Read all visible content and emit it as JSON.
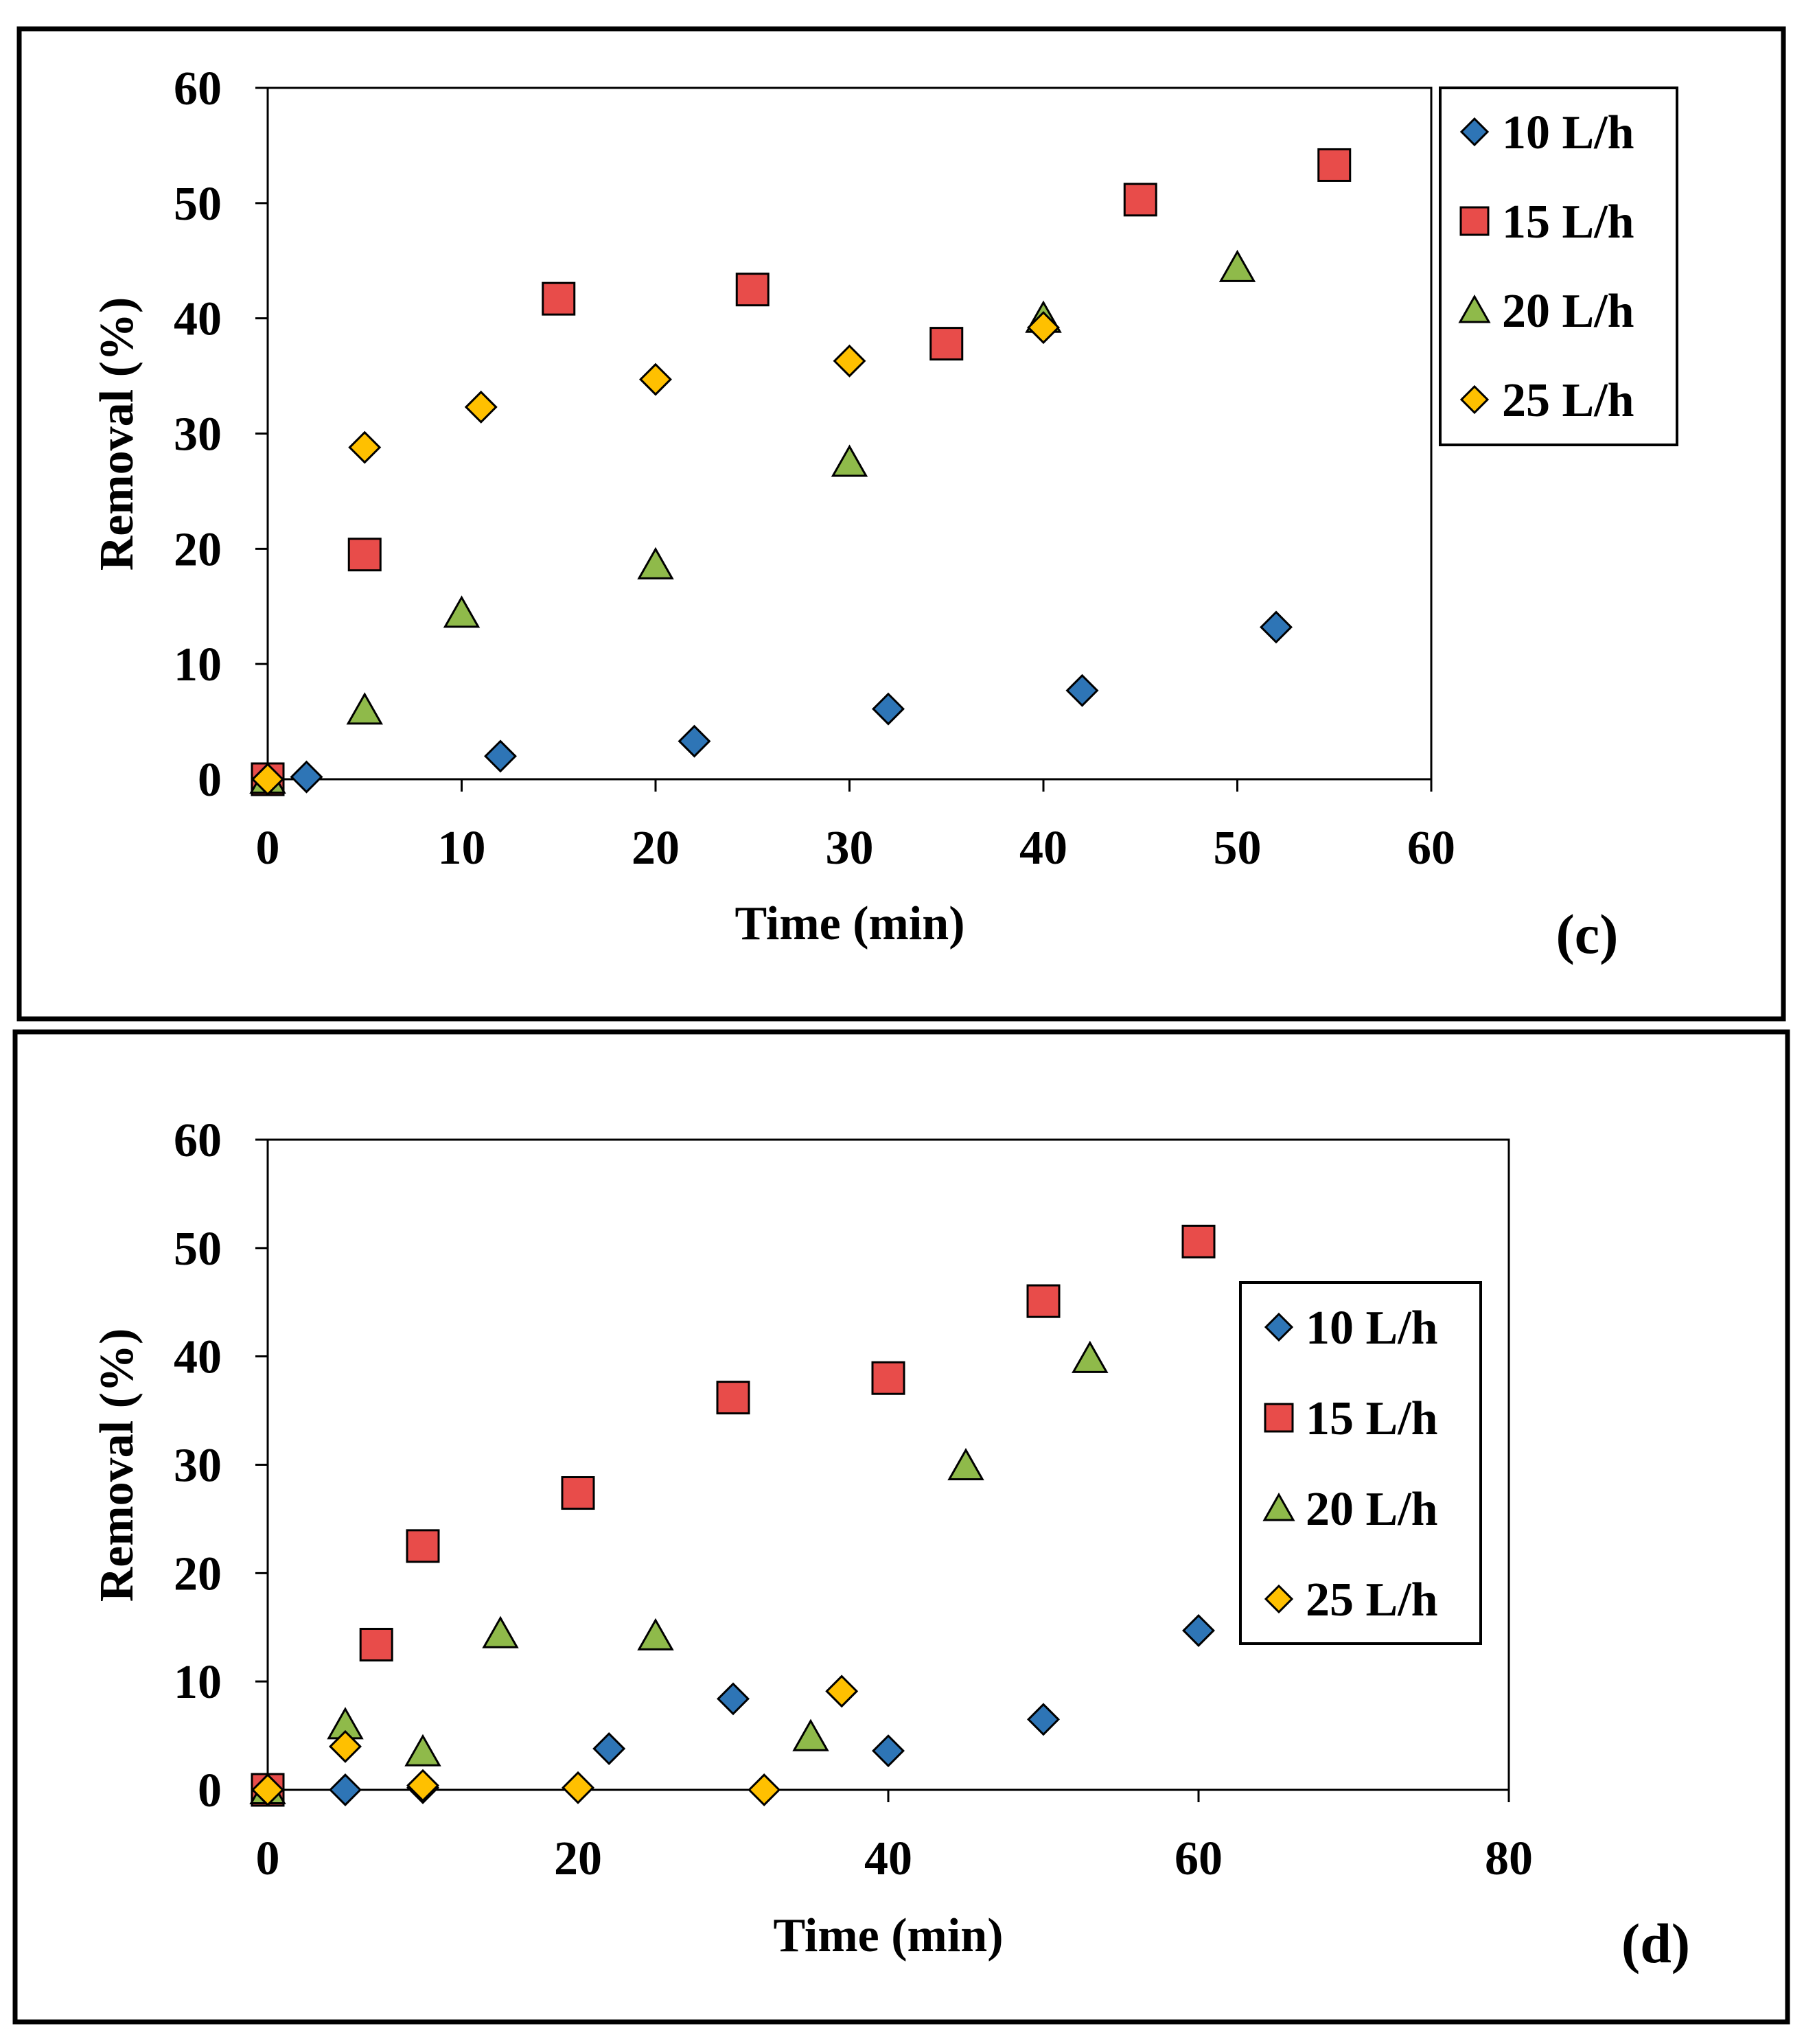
{
  "chart_data": [
    {
      "type": "scatter",
      "panel_label": "(c)",
      "xlabel": "Time (min)",
      "ylabel": "Removal (%)",
      "xlim": [
        0,
        60
      ],
      "ylim": [
        0,
        60
      ],
      "xticks": [
        0,
        10,
        20,
        30,
        40,
        50,
        60
      ],
      "yticks": [
        0,
        10,
        20,
        30,
        40,
        50,
        60
      ],
      "grid": false,
      "legend_position": "top-right-outside",
      "series": [
        {
          "name": "10 L/h",
          "marker": "diamond",
          "color": "#2e75b6",
          "x": [
            0,
            2,
            12,
            22,
            32,
            42,
            52
          ],
          "y": [
            0,
            0.2,
            2.0,
            3.3,
            6.1,
            7.7,
            13.2
          ]
        },
        {
          "name": "15 L/h",
          "marker": "square",
          "color": "#e84c4a",
          "x": [
            0,
            5,
            15,
            25,
            35,
            45,
            55
          ],
          "y": [
            0,
            19.5,
            41.7,
            42.5,
            37.8,
            50.3,
            53.3
          ]
        },
        {
          "name": "20 L/h",
          "marker": "triangle",
          "color": "#8fba4a",
          "x": [
            0,
            5,
            10,
            20,
            30,
            40,
            50
          ],
          "y": [
            0,
            6.0,
            14.4,
            18.6,
            27.5,
            40.0,
            44.4
          ]
        },
        {
          "name": "25 L/h",
          "marker": "diamond",
          "color": "#ffc000",
          "x": [
            0,
            5,
            11,
            20,
            30,
            40
          ],
          "y": [
            0,
            28.8,
            32.3,
            34.7,
            36.3,
            39.2
          ]
        }
      ]
    },
    {
      "type": "scatter",
      "panel_label": "(d)",
      "xlabel": "Time (min)",
      "ylabel": "Removal (%)",
      "xlim": [
        0,
        80
      ],
      "ylim": [
        0,
        60
      ],
      "xticks": [
        0,
        20,
        40,
        60,
        80
      ],
      "yticks": [
        0,
        10,
        20,
        30,
        40,
        50,
        60
      ],
      "grid": false,
      "legend_position": "right-inside",
      "series": [
        {
          "name": "10 L/h",
          "marker": "diamond",
          "color": "#2e75b6",
          "x": [
            0,
            5,
            10,
            22,
            30,
            40,
            50,
            60
          ],
          "y": [
            0,
            0,
            0.2,
            3.8,
            8.4,
            3.6,
            6.5,
            14.7
          ]
        },
        {
          "name": "15 L/h",
          "marker": "square",
          "color": "#e84c4a",
          "x": [
            0,
            7,
            10,
            20,
            30,
            40,
            50,
            60
          ],
          "y": [
            0,
            13.4,
            22.5,
            27.4,
            36.2,
            38.0,
            45.1,
            50.6
          ]
        },
        {
          "name": "20 L/h",
          "marker": "triangle",
          "color": "#8fba4a",
          "x": [
            0,
            5,
            10,
            15,
            25,
            35,
            45,
            53
          ],
          "y": [
            0,
            6.0,
            3.5,
            14.4,
            14.2,
            4.9,
            29.9,
            39.8
          ]
        },
        {
          "name": "25 L/h",
          "marker": "diamond",
          "color": "#ffc000",
          "x": [
            0,
            5,
            10,
            20,
            32,
            37
          ],
          "y": [
            0,
            4.0,
            0.4,
            0.2,
            0,
            9.1
          ]
        }
      ]
    }
  ]
}
